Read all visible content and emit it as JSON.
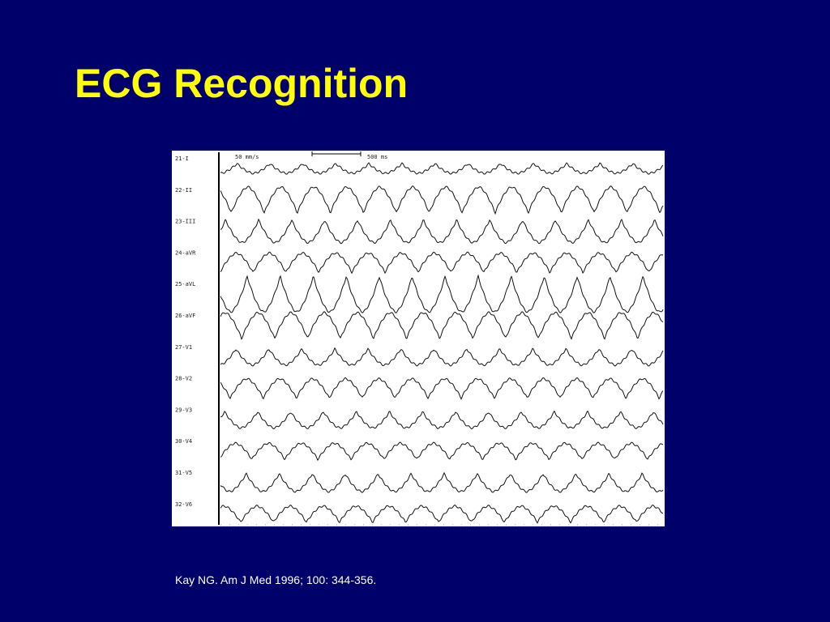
{
  "header": {
    "title": "ECG Recognition"
  },
  "ecg": {
    "speed": "50 mm/s",
    "scale": "500 ms",
    "leads": [
      "21-I",
      "22-II",
      "23-III",
      "24-aVR",
      "25-aVL",
      "26-aVF",
      "27-V1",
      "28-V2",
      "29-V3",
      "30-V4",
      "31-V5",
      "32-V6"
    ]
  },
  "citation": "Kay NG. Am J Med 1996; 100: 344-356."
}
